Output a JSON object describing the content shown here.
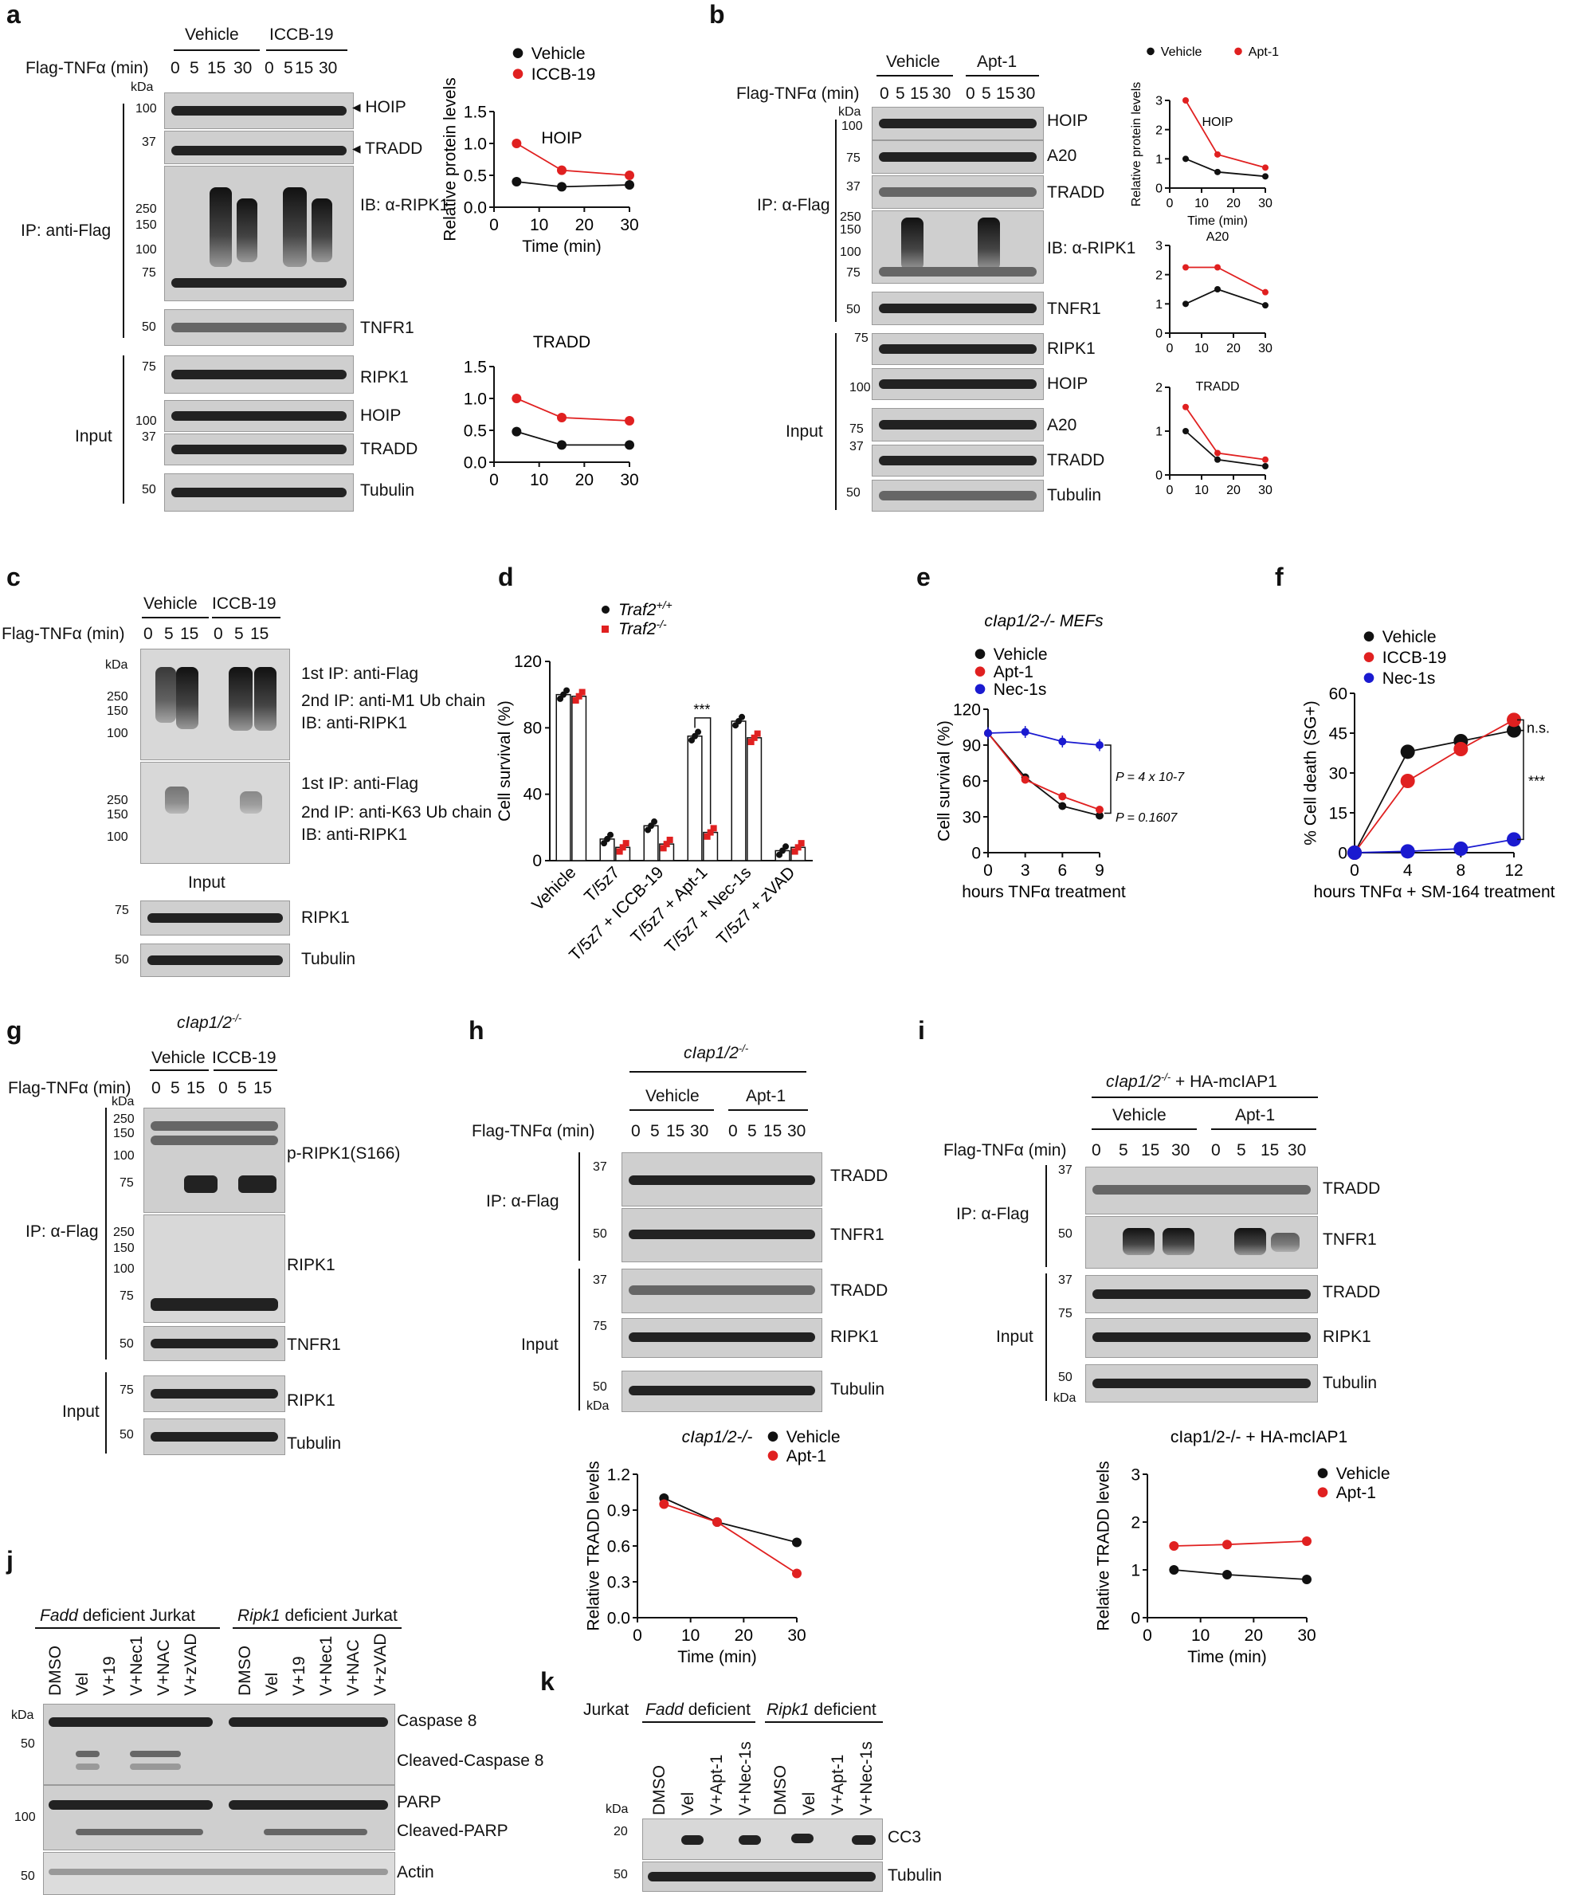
{
  "panel_letters": [
    "a",
    "b",
    "c",
    "d",
    "e",
    "f",
    "g",
    "h",
    "i",
    "j",
    "k"
  ],
  "labels": {
    "vehicle": "Vehicle",
    "iccb19": "ICCB-19",
    "apt1": "Apt-1",
    "flag_tnf": "Flag-TNFα (min)",
    "kda": "kDa",
    "times_a": [
      "0",
      "5",
      "15",
      "30"
    ],
    "times_c": [
      "0",
      "5",
      "15"
    ],
    "ip_anti_flag": "IP: anti-Flag",
    "ip_alpha_flag": "IP: α-Flag",
    "input": "Input",
    "ib_ripk1": "IB: α-RIPK1",
    "ciap": "cIap1/2",
    "ciap_sup": "-/-",
    "ciap_hamc": " + HA-mcIAP1",
    "mefs": " MEFs",
    "jurkat": "Jurkat",
    "fadd_def": "Fadd",
    "ripk1_def": "Ripk1",
    "deficient": " deficient",
    "deficient_jurkat": " deficient Jurkat"
  },
  "panel_a": {
    "ladder": [
      "100",
      "37",
      "250",
      "150",
      "100",
      "75",
      "50",
      "75",
      "100",
      "37",
      "50"
    ],
    "blot_labels": [
      "◂ HOIP",
      "◂ TRADD",
      "IB: α-RIPK1",
      "TNFR1",
      "RIPK1",
      "HOIP",
      "TRADD",
      "Tubulin"
    ]
  },
  "panel_b": {
    "ladder": [
      "100",
      "75",
      "37",
      "250",
      "150",
      "100",
      "75",
      "50",
      "75",
      "100",
      "75",
      "37",
      "50"
    ],
    "blot_labels": [
      "HOIP",
      "A20",
      "TRADD",
      "IB: α-RIPK1",
      "TNFR1",
      "RIPK1",
      "HOIP",
      "A20",
      "TRADD",
      "Tubulin"
    ]
  },
  "panel_c": {
    "ladder": [
      "250",
      "150",
      "100",
      "250",
      "150",
      "100",
      "75",
      "50"
    ],
    "ip1": "1st IP: anti-Flag",
    "ip2_m1": "2nd IP: anti-M1 Ub chain",
    "ib": "IB: anti-RIPK1",
    "ip2_k63": "2nd IP: anti-K63 Ub chain",
    "blot_labels": [
      "RIPK1",
      "Tubulin"
    ]
  },
  "panel_g": {
    "ladder": [
      "250",
      "150",
      "100",
      "75",
      "250",
      "150",
      "100",
      "75",
      "50",
      "75",
      "50"
    ],
    "blot_labels": [
      "p-RIPK1(S166)",
      "RIPK1",
      "TNFR1",
      "RIPK1",
      "Tubulin"
    ]
  },
  "panel_h": {
    "ladder": [
      "37",
      "50",
      "37",
      "75",
      "50"
    ],
    "blot_labels": [
      "TRADD",
      "TNFR1",
      "TRADD",
      "RIPK1",
      "Tubulin"
    ]
  },
  "panel_i": {
    "ladder": [
      "37",
      "50",
      "37",
      "75",
      "50"
    ],
    "blot_labels": [
      "TRADD",
      "TNFR1",
      "TRADD",
      "RIPK1",
      "Tubulin"
    ]
  },
  "panel_j": {
    "lanes": [
      "DMSO",
      "Vel",
      "V+19",
      "V+Nec1",
      "V+NAC",
      "V+zVAD"
    ],
    "ladder": [
      "50",
      "100",
      "50"
    ],
    "blot_labels": [
      "Caspase 8",
      "Cleaved-Caspase 8",
      "PARP",
      "Cleaved-PARP",
      "Actin"
    ]
  },
  "panel_k": {
    "lanes": [
      "DMSO",
      "Vel",
      "V+Apt-1",
      "V+Nec-1s"
    ],
    "ladder": [
      "20",
      "50"
    ],
    "blot_labels": [
      "CC3",
      "Tubulin"
    ]
  },
  "colors": {
    "vehicle": "#111111",
    "treated": "#e02020",
    "nec": "#1a1ad0"
  },
  "chart_data": [
    {
      "id": "a-HOIP",
      "type": "line",
      "title": "HOIP",
      "xlabel": "Time (min)",
      "ylabel": "Relative protein levels",
      "x": [
        5,
        15,
        30
      ],
      "xlim": [
        0,
        30
      ],
      "ylim": [
        0,
        1.5
      ],
      "xticks": [
        "0",
        "10",
        "20",
        "30"
      ],
      "yticks": [
        "0.0",
        "0.5",
        "1.0",
        "1.5"
      ],
      "series": [
        {
          "name": "Vehicle",
          "values": [
            0.4,
            0.32,
            0.35
          ]
        },
        {
          "name": "ICCB-19",
          "values": [
            1.0,
            0.58,
            0.5
          ]
        }
      ]
    },
    {
      "id": "a-TRADD",
      "type": "line",
      "title": "TRADD",
      "xlabel": "",
      "ylabel": "",
      "x": [
        5,
        15,
        30
      ],
      "xlim": [
        0,
        30
      ],
      "ylim": [
        0,
        1.5
      ],
      "xticks": [
        "0",
        "10",
        "20",
        "30"
      ],
      "yticks": [
        "0.0",
        "0.5",
        "1.0",
        "1.5"
      ],
      "series": [
        {
          "name": "Vehicle",
          "values": [
            0.48,
            0.27,
            0.27
          ]
        },
        {
          "name": "ICCB-19",
          "values": [
            1.0,
            0.7,
            0.65
          ]
        }
      ]
    },
    {
      "id": "b-HOIP",
      "type": "line",
      "title": "HOIP",
      "xlabel": "Time (min)",
      "ylabel": "Relative protein levels",
      "x": [
        5,
        15,
        30
      ],
      "xlim": [
        0,
        30
      ],
      "ylim": [
        0,
        3
      ],
      "xticks": [
        "0",
        "10",
        "20",
        "30"
      ],
      "yticks": [
        "0",
        "1",
        "2",
        "3"
      ],
      "series": [
        {
          "name": "Vehicle",
          "values": [
            1.0,
            0.55,
            0.4
          ]
        },
        {
          "name": "Apt-1",
          "values": [
            3.0,
            1.15,
            0.7
          ]
        }
      ]
    },
    {
      "id": "b-A20",
      "type": "line",
      "title": "A20",
      "xlabel": "",
      "ylabel": "",
      "x": [
        5,
        15,
        30
      ],
      "xlim": [
        0,
        30
      ],
      "ylim": [
        0,
        3
      ],
      "xticks": [
        "0",
        "10",
        "20",
        "30"
      ],
      "yticks": [
        "0",
        "1",
        "2",
        "3"
      ],
      "series": [
        {
          "name": "Vehicle",
          "values": [
            1.0,
            1.5,
            0.95
          ]
        },
        {
          "name": "Apt-1",
          "values": [
            2.25,
            2.25,
            1.4
          ]
        }
      ]
    },
    {
      "id": "b-TRADD",
      "type": "line",
      "title": "TRADD",
      "xlabel": "",
      "ylabel": "",
      "x": [
        5,
        15,
        30
      ],
      "xlim": [
        0,
        30
      ],
      "ylim": [
        0,
        2
      ],
      "xticks": [
        "0",
        "10",
        "20",
        "30"
      ],
      "yticks": [
        "0",
        "1",
        "2"
      ],
      "series": [
        {
          "name": "Vehicle",
          "values": [
            1.0,
            0.35,
            0.2
          ]
        },
        {
          "name": "Apt-1",
          "values": [
            1.55,
            0.5,
            0.35
          ]
        }
      ]
    },
    {
      "id": "d",
      "type": "bar",
      "ylabel": "Cell survival (%)",
      "ylim": [
        0,
        120
      ],
      "yticks": [
        "0",
        "40",
        "80",
        "120"
      ],
      "categories": [
        "Vehicle",
        "T/5z7",
        "T/5z7 + ICCB-19",
        "T/5z7 + Apt-1",
        "T/5z7 + Nec-1s",
        "T/5z7 + zVAD"
      ],
      "series": [
        {
          "name": "Traf2+/+",
          "values": [
            100,
            13,
            21,
            75,
            84,
            6
          ]
        },
        {
          "name": "Traf2-/-",
          "values": [
            99,
            8,
            10,
            17,
            74,
            8
          ]
        }
      ],
      "annotations": [
        "***"
      ]
    },
    {
      "id": "e",
      "type": "line",
      "title": "cIap1/2-/- MEFs",
      "xlabel": "hours TNFα treatment",
      "ylabel": "Cell survival (%)",
      "x": [
        0,
        3,
        6,
        9
      ],
      "xlim": [
        0,
        9
      ],
      "ylim": [
        0,
        120
      ],
      "xticks": [
        "0",
        "3",
        "6",
        "9"
      ],
      "yticks": [
        "0",
        "30",
        "60",
        "90",
        "120"
      ],
      "series": [
        {
          "name": "Vehicle",
          "values": [
            100,
            63,
            39,
            31
          ]
        },
        {
          "name": "Apt-1",
          "values": [
            100,
            61,
            47,
            36
          ]
        },
        {
          "name": "Nec-1s",
          "values": [
            100,
            101,
            93,
            90
          ]
        }
      ],
      "annotations": [
        "P = 4 x 10-7",
        "P = 0.1607"
      ]
    },
    {
      "id": "f",
      "type": "line",
      "xlabel": "hours TNFα + SM-164 treatment",
      "ylabel": "% Cell death (SG+)",
      "x": [
        0,
        4,
        8,
        12
      ],
      "xlim": [
        0,
        12
      ],
      "ylim": [
        0,
        60
      ],
      "xticks": [
        "0",
        "4",
        "8",
        "12"
      ],
      "yticks": [
        "0",
        "15",
        "30",
        "45",
        "60"
      ],
      "series": [
        {
          "name": "Vehicle",
          "values": [
            0,
            38,
            42,
            46
          ]
        },
        {
          "name": "ICCB-19",
          "values": [
            0,
            27,
            39,
            50
          ]
        },
        {
          "name": "Nec-1s",
          "values": [
            0,
            0.5,
            1.5,
            5
          ]
        }
      ],
      "annotations": [
        "n.s.",
        "***"
      ]
    },
    {
      "id": "h",
      "type": "line",
      "title": "cIap1/2-/-",
      "xlabel": "Time (min)",
      "ylabel": "Relative TRADD levels",
      "x": [
        5,
        15,
        30
      ],
      "xlim": [
        0,
        30
      ],
      "ylim": [
        0,
        1.2
      ],
      "xticks": [
        "0",
        "10",
        "20",
        "30"
      ],
      "yticks": [
        "0.0",
        "0.3",
        "0.6",
        "0.9",
        "1.2"
      ],
      "series": [
        {
          "name": "Vehicle",
          "values": [
            1.0,
            0.8,
            0.63
          ]
        },
        {
          "name": "Apt-1",
          "values": [
            0.95,
            0.8,
            0.37
          ]
        }
      ]
    },
    {
      "id": "i",
      "type": "line",
      "title": "cIap1/2-/- + HA-mcIAP1",
      "xlabel": "Time (min)",
      "ylabel": "Relative TRADD levels",
      "x": [
        5,
        15,
        30
      ],
      "xlim": [
        0,
        30
      ],
      "ylim": [
        0,
        3
      ],
      "xticks": [
        "0",
        "10",
        "20",
        "30"
      ],
      "yticks": [
        "0",
        "1",
        "2",
        "3"
      ],
      "series": [
        {
          "name": "Vehicle",
          "values": [
            1.0,
            0.9,
            0.8
          ]
        },
        {
          "name": "Apt-1",
          "values": [
            1.5,
            1.53,
            1.6
          ]
        }
      ]
    }
  ]
}
